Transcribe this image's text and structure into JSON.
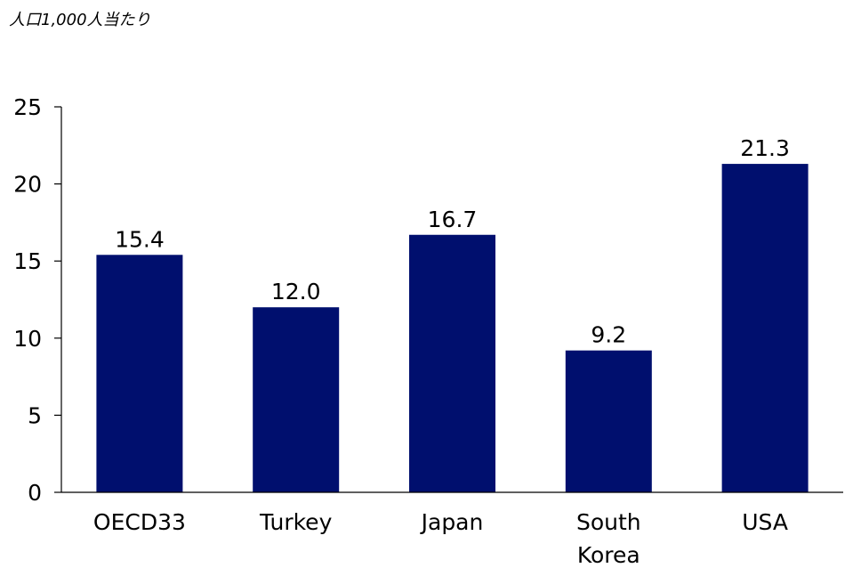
{
  "chart_data": {
    "type": "bar",
    "subtitle": "人口1,000人当たり",
    "categories": [
      "OECD33",
      "Turkey",
      "Japan",
      "South Korea",
      "USA"
    ],
    "category_lines": [
      [
        "OECD33"
      ],
      [
        "Turkey"
      ],
      [
        "Japan"
      ],
      [
        "South",
        "Korea"
      ],
      [
        "USA"
      ]
    ],
    "values": [
      15.4,
      12.0,
      16.7,
      9.2,
      21.3
    ],
    "value_labels": [
      "15.4",
      "12.0",
      "16.7",
      "9.2",
      "21.3"
    ],
    "ylim": [
      0,
      25
    ],
    "yticks": [
      0,
      5,
      10,
      15,
      20,
      25
    ],
    "xlabel": "",
    "ylabel": "",
    "grid": false,
    "bar_color": "#000F6E"
  }
}
